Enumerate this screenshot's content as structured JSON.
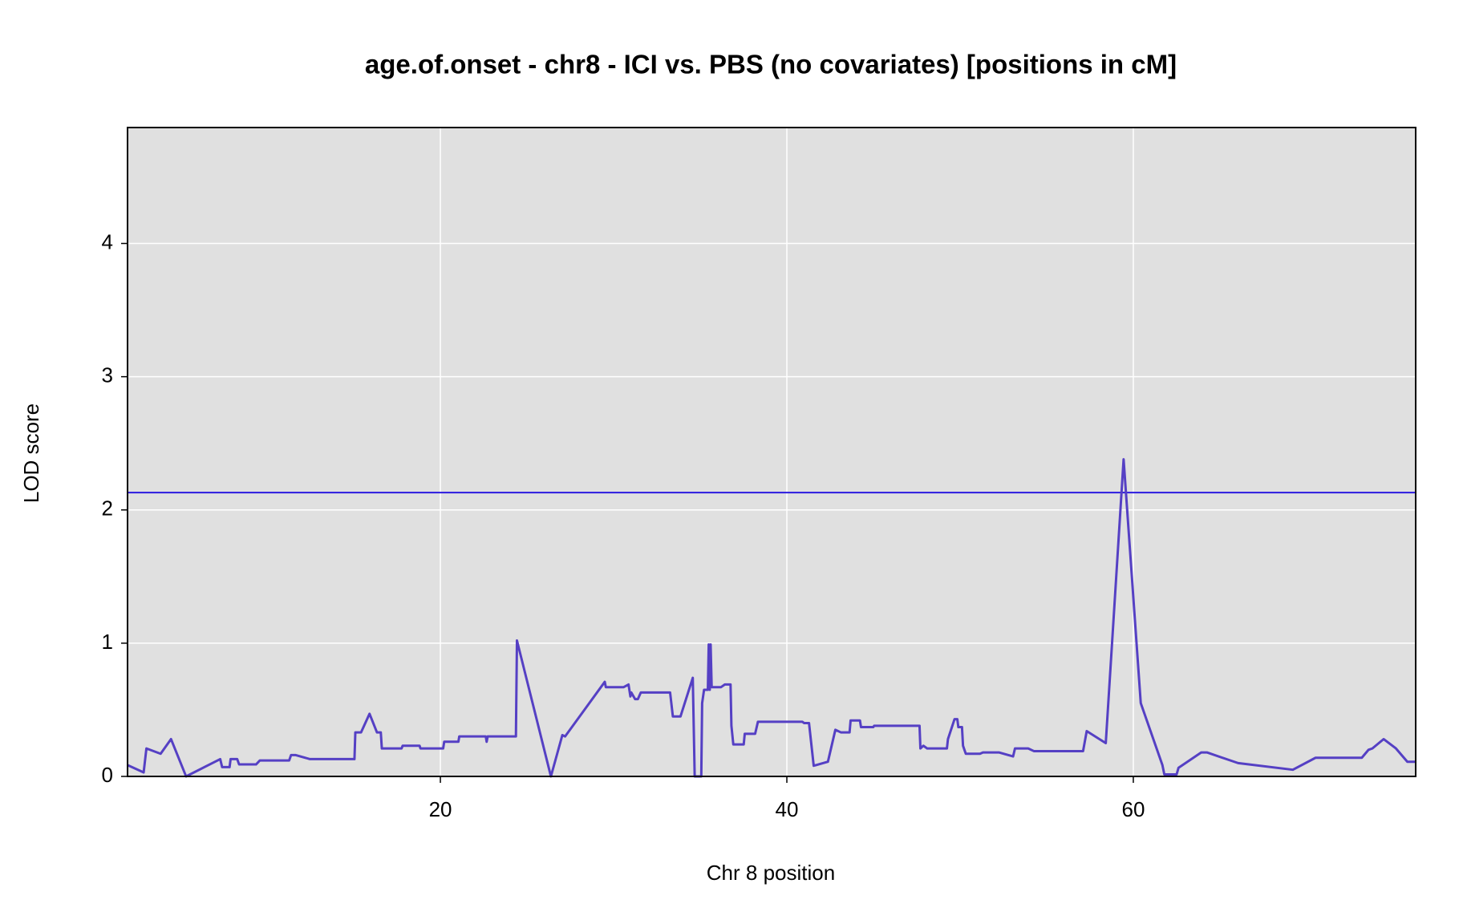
{
  "chart_data": {
    "type": "line",
    "title": "age.of.onset - chr8 - ICI vs. PBS (no covariates) [positions in cM]",
    "x_label": "Chr 8 position",
    "y_label": "LOD score",
    "x": [
      1.94,
      2.87,
      3.03,
      3.85,
      4.45,
      5.32,
      7.29,
      7.4,
      7.83,
      7.89,
      8.27,
      8.38,
      9.36,
      9.58,
      11.27,
      11.38,
      11.65,
      12.47,
      15.04,
      15.09,
      15.42,
      15.91,
      16.34,
      16.56,
      16.62,
      17.76,
      17.82,
      18.8,
      18.85,
      20.16,
      20.22,
      21.04,
      21.09,
      22.62,
      22.67,
      22.73,
      23.16,
      23.22,
      24.36,
      24.42,
      26.38,
      27.04,
      27.2,
      29.49,
      29.55,
      30.58,
      30.86,
      30.97,
      31.02,
      31.24,
      31.4,
      31.57,
      33.26,
      33.42,
      33.86,
      34.57,
      34.68,
      35.06,
      35.11,
      35.22,
      35.44,
      35.49,
      35.55,
      35.6,
      35.66,
      36.2,
      36.42,
      36.75,
      36.8,
      36.91,
      37.51,
      37.57,
      38.17,
      38.33,
      40.9,
      41,
      41.28,
      41.55,
      42.37,
      42.8,
      43.13,
      43.62,
      43.68,
      44.22,
      44.28,
      44.99,
      45.04,
      47.66,
      47.71,
      47.88,
      48.1,
      49.24,
      49.3,
      49.68,
      49.84,
      49.9,
      50.11,
      50.17,
      50.33,
      51.15,
      51.32,
      52.24,
      53.06,
      53.17,
      53.93,
      54.26,
      57.1,
      57.31,
      58.41,
      59.44,
      60.43,
      61.68,
      61.79,
      62.5,
      62.61,
      63.92,
      64.25,
      66.05,
      69.21,
      70.52,
      73.19,
      73.58,
      73.8,
      74.45,
      75.16,
      75.82,
      76.3
    ],
    "values": [
      0.085,
      0.03,
      0.21,
      0.17,
      0.28,
      0,
      0.13,
      0.07,
      0.07,
      0.13,
      0.13,
      0.09,
      0.09,
      0.12,
      0.12,
      0.16,
      0.16,
      0.13,
      0.13,
      0.33,
      0.33,
      0.47,
      0.33,
      0.33,
      0.21,
      0.21,
      0.23,
      0.23,
      0.21,
      0.21,
      0.26,
      0.26,
      0.3,
      0.3,
      0.26,
      0.3,
      0.3,
      0.3,
      0.3,
      1.02,
      0,
      0.31,
      0.3,
      0.71,
      0.67,
      0.67,
      0.69,
      0.6,
      0.63,
      0.58,
      0.58,
      0.63,
      0.63,
      0.45,
      0.45,
      0.74,
      0,
      0,
      0.55,
      0.65,
      0.65,
      0.99,
      0.65,
      0.99,
      0.67,
      0.67,
      0.69,
      0.69,
      0.38,
      0.24,
      0.24,
      0.32,
      0.32,
      0.41,
      0.41,
      0.4,
      0.4,
      0.08,
      0.11,
      0.35,
      0.33,
      0.33,
      0.42,
      0.42,
      0.37,
      0.37,
      0.38,
      0.38,
      0.21,
      0.23,
      0.21,
      0.21,
      0.28,
      0.43,
      0.43,
      0.37,
      0.37,
      0.23,
      0.17,
      0.17,
      0.18,
      0.18,
      0.15,
      0.21,
      0.21,
      0.19,
      0.19,
      0.34,
      0.25,
      2.38,
      0.55,
      0.085,
      0.015,
      0.015,
      0.065,
      0.18,
      0.18,
      0.1,
      0.05,
      0.14,
      0.14,
      0.2,
      0.21,
      0.28,
      0.21,
      0.11,
      0.11
    ],
    "color": "#5540c4",
    "threshold": 2.13,
    "threshold_color": "#2b1ae0",
    "xlim": [
      1.94,
      76.3
    ],
    "ylim": [
      0,
      4.87
    ],
    "xticks": [
      20,
      40,
      60
    ],
    "yticks": [
      0,
      1,
      2,
      3,
      4
    ],
    "grid": true,
    "background": "#e0e0e0"
  }
}
